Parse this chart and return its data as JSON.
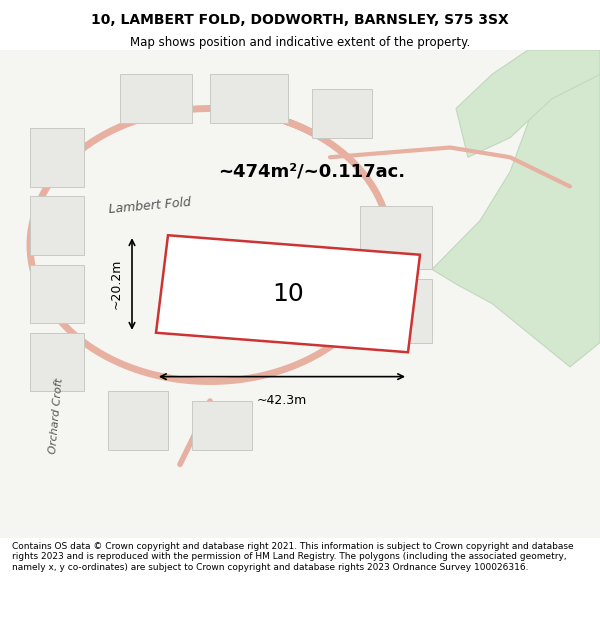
{
  "title": "10, LAMBERT FOLD, DODWORTH, BARNSLEY, S75 3SX",
  "subtitle": "Map shows position and indicative extent of the property.",
  "area_text": "~474m²/~0.117ac.",
  "property_number": "10",
  "dim_width": "~42.3m",
  "dim_height": "~20.2m",
  "footer": "Contains OS data © Crown copyright and database right 2021. This information is subject to Crown copyright and database rights 2023 and is reproduced with the permission of HM Land Registry. The polygons (including the associated geometry, namely x, y co-ordinates) are subject to Crown copyright and database rights 2023 Ordnance Survey 100026316.",
  "bg_color": "#f0f0ec",
  "map_bg": "#f5f5f2",
  "road_color": "#e8b0a0",
  "building_fill": "#e8e8e4",
  "building_edge": "#c8c8c4",
  "highlight_fill": "#ffffff",
  "highlight_edge": "#cc3333",
  "green_fill": "#d4e8d0",
  "green_edge": "#c0d8bc",
  "label_lambert": "Lambert Fold",
  "label_orchard": "Orchard Croft"
}
